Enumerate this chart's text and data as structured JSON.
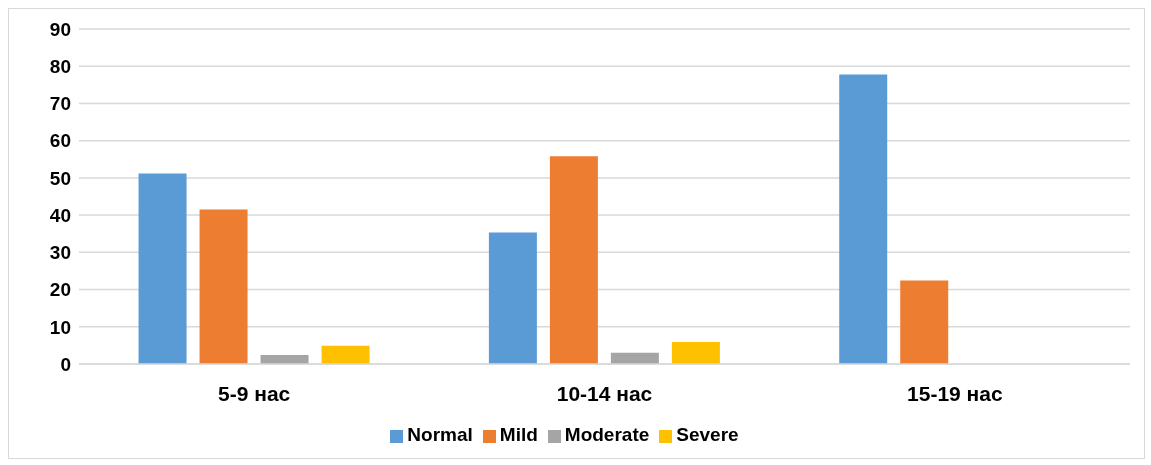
{
  "chart_data": {
    "type": "bar",
    "categories": [
      "5-9 нас",
      "10-14 нас",
      "15-19 нас"
    ],
    "series": [
      {
        "name": "Normal",
        "color": "#5b9bd5",
        "values": [
          51.2,
          35.3,
          77.8
        ]
      },
      {
        "name": "Mild",
        "color": "#ed7d31",
        "values": [
          41.5,
          55.8,
          22.4
        ]
      },
      {
        "name": "Moderate",
        "color": "#a5a5a5",
        "values": [
          2.4,
          3.0,
          0
        ]
      },
      {
        "name": "Severe",
        "color": "#ffc000",
        "values": [
          4.9,
          5.9,
          0
        ]
      }
    ],
    "ylim": [
      0,
      90
    ],
    "yticks": [
      0,
      10,
      20,
      30,
      40,
      50,
      60,
      70,
      80,
      90
    ],
    "grid": "y",
    "legend": "bottom"
  }
}
